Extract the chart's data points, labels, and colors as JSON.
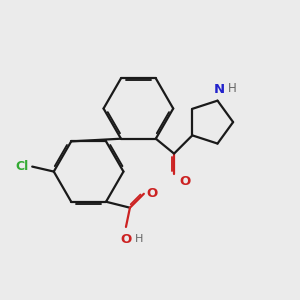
{
  "bg_color": "#ebebeb",
  "bond_color": "#1a1a1a",
  "cl_color": "#33aa33",
  "n_color": "#2222cc",
  "o_color": "#cc2222",
  "h_color": "#666666",
  "lw": 1.6,
  "dbo": 0.055,
  "xlim": [
    0.5,
    9.5
  ],
  "ylim": [
    0.5,
    9.5
  ]
}
